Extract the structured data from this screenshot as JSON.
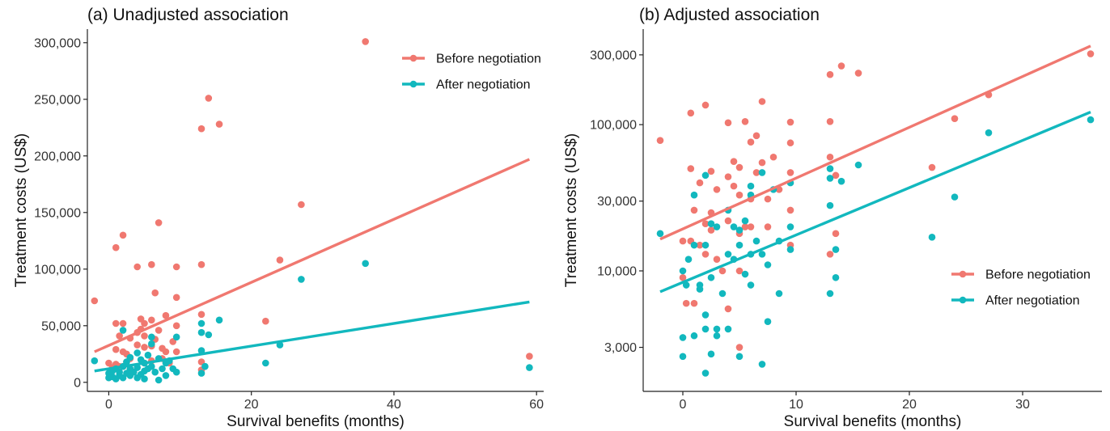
{
  "chart_data": [
    {
      "type": "scatter",
      "title": "(a) Unadjusted association",
      "xlabel": "Survival benefits (months)",
      "ylabel": "Treatment costs (US$)",
      "xlim": [
        -3,
        61
      ],
      "ylim": [
        -8000,
        312000
      ],
      "y_scale": "linear",
      "xticks": [
        0,
        20,
        40,
        60
      ],
      "yticks": [
        0,
        50000,
        100000,
        150000,
        200000,
        250000,
        300000
      ],
      "ytick_labels": [
        "0",
        "50,000",
        "100,000",
        "150,000",
        "200,000",
        "250,000",
        "300,000"
      ],
      "legend_position": "top-right",
      "grid": false,
      "series": [
        {
          "name": "Before negotiation",
          "color": "#F07870",
          "points": [
            [
              -2,
              72000
            ],
            [
              0,
              17000
            ],
            [
              0.5,
              13000
            ],
            [
              1,
              119000
            ],
            [
              1,
              52000
            ],
            [
              1,
              29000
            ],
            [
              1,
              16000
            ],
            [
              1.5,
              14000
            ],
            [
              1.5,
              41000
            ],
            [
              2,
              130000
            ],
            [
              2,
              52000
            ],
            [
              2,
              27000
            ],
            [
              2,
              14000
            ],
            [
              2.5,
              25000
            ],
            [
              2.5,
              18000
            ],
            [
              3,
              39000
            ],
            [
              3,
              21000
            ],
            [
              3,
              12000
            ],
            [
              4,
              102000
            ],
            [
              4,
              44000
            ],
            [
              4,
              33000
            ],
            [
              4.5,
              56000
            ],
            [
              4.5,
              47000
            ],
            [
              5,
              52000
            ],
            [
              5,
              41000
            ],
            [
              5,
              31000
            ],
            [
              5,
              17000
            ],
            [
              6,
              104000
            ],
            [
              6,
              55000
            ],
            [
              6,
              32000
            ],
            [
              6,
              19000
            ],
            [
              6.5,
              79000
            ],
            [
              6.5,
              38000
            ],
            [
              7,
              141000
            ],
            [
              7,
              46000
            ],
            [
              7.5,
              30000
            ],
            [
              7.5,
              21000
            ],
            [
              8,
              59000
            ],
            [
              8,
              27000
            ],
            [
              8.5,
              17000
            ],
            [
              9,
              36000
            ],
            [
              9.5,
              102000
            ],
            [
              9.5,
              75000
            ],
            [
              9.5,
              50000
            ],
            [
              9.5,
              27000
            ],
            [
              13,
              224000
            ],
            [
              13,
              104000
            ],
            [
              13,
              60000
            ],
            [
              13,
              18000
            ],
            [
              13,
              11000
            ],
            [
              14,
              251000
            ],
            [
              15.5,
              228000
            ],
            [
              22,
              54000
            ],
            [
              24,
              108000
            ],
            [
              27,
              157000
            ],
            [
              36,
              301000
            ],
            [
              59,
              23000
            ]
          ],
          "trend": {
            "x": [
              -2,
              59
            ],
            "y": [
              27000,
              197000
            ]
          }
        },
        {
          "name": "After negotiation",
          "color": "#12B8BE",
          "points": [
            [
              -2,
              19000
            ],
            [
              0,
              4000
            ],
            [
              0,
              8000
            ],
            [
              0.5,
              5000
            ],
            [
              0.5,
              10000
            ],
            [
              1,
              3000
            ],
            [
              1,
              12000
            ],
            [
              1.5,
              6000
            ],
            [
              1.5,
              9000
            ],
            [
              2,
              4000
            ],
            [
              2,
              14000
            ],
            [
              2,
              46000
            ],
            [
              2.5,
              8000
            ],
            [
              2.5,
              18000
            ],
            [
              3,
              6000
            ],
            [
              3,
              12000
            ],
            [
              3,
              22000
            ],
            [
              3.5,
              9000
            ],
            [
              4,
              13000
            ],
            [
              4,
              26000
            ],
            [
              4,
              4000
            ],
            [
              4.5,
              7000
            ],
            [
              4.5,
              20000
            ],
            [
              5,
              3000
            ],
            [
              5,
              10000
            ],
            [
              5,
              17000
            ],
            [
              5.5,
              24000
            ],
            [
              5.5,
              12000
            ],
            [
              6,
              14000
            ],
            [
              6,
              34000
            ],
            [
              6,
              40000
            ],
            [
              6.5,
              9000
            ],
            [
              7,
              2000
            ],
            [
              7,
              21000
            ],
            [
              7.5,
              12000
            ],
            [
              8,
              17000
            ],
            [
              8,
              6000
            ],
            [
              8.5,
              19000
            ],
            [
              9,
              12000
            ],
            [
              9.5,
              40000
            ],
            [
              9.5,
              9000
            ],
            [
              13,
              52000
            ],
            [
              13,
              44000
            ],
            [
              13,
              28000
            ],
            [
              13,
              8000
            ],
            [
              13.5,
              14000
            ],
            [
              14,
              42000
            ],
            [
              15.5,
              55000
            ],
            [
              22,
              17000
            ],
            [
              24,
              33000
            ],
            [
              27,
              91000
            ],
            [
              36,
              105000
            ],
            [
              59,
              13000
            ]
          ],
          "trend": {
            "x": [
              -2,
              59
            ],
            "y": [
              10000,
              71000
            ]
          }
        }
      ]
    },
    {
      "type": "scatter",
      "title": "(b) Adjusted association",
      "xlabel": "Survival benefits (months)",
      "ylabel": "Treatment costs (US$)",
      "xlim": [
        -3.5,
        37
      ],
      "ylim": [
        1500,
        450000
      ],
      "y_scale": "log",
      "xticks": [
        0,
        10,
        20,
        30
      ],
      "yticks": [
        3000,
        10000,
        30000,
        100000,
        300000
      ],
      "ytick_labels": [
        "3,000",
        "10,000",
        "30,000",
        "100,000",
        "300,000"
      ],
      "legend_position": "bottom-right",
      "grid": false,
      "series": [
        {
          "name": "Before negotiation",
          "color": "#F07870",
          "points": [
            [
              -2,
              78000
            ],
            [
              0,
              16000
            ],
            [
              0,
              9000
            ],
            [
              0.3,
              6000
            ],
            [
              0.7,
              120000
            ],
            [
              0.7,
              50000
            ],
            [
              0.7,
              16000
            ],
            [
              1,
              26000
            ],
            [
              1,
              6000
            ],
            [
              1.5,
              15000
            ],
            [
              1.5,
              40000
            ],
            [
              2,
              136000
            ],
            [
              2,
              13000
            ],
            [
              2,
              21000
            ],
            [
              2.5,
              48000
            ],
            [
              2.5,
              25000
            ],
            [
              2.5,
              19000
            ],
            [
              3,
              36000
            ],
            [
              3,
              12000
            ],
            [
              3.5,
              10000
            ],
            [
              4,
              103000
            ],
            [
              4,
              44000
            ],
            [
              4,
              22000
            ],
            [
              4,
              5500
            ],
            [
              4.5,
              56000
            ],
            [
              4.5,
              38000
            ],
            [
              5,
              51000
            ],
            [
              5,
              33000
            ],
            [
              5,
              18000
            ],
            [
              5,
              10000
            ],
            [
              5,
              3000
            ],
            [
              5.5,
              20000
            ],
            [
              5.5,
              105000
            ],
            [
              6,
              76000
            ],
            [
              6,
              31000
            ],
            [
              6,
              20000
            ],
            [
              6.5,
              84000
            ],
            [
              6.5,
              47000
            ],
            [
              7,
              144000
            ],
            [
              7,
              55000
            ],
            [
              7.5,
              31000
            ],
            [
              7.5,
              20000
            ],
            [
              8,
              60000
            ],
            [
              8.5,
              36000
            ],
            [
              9.5,
              104000
            ],
            [
              9.5,
              75000
            ],
            [
              9.5,
              47000
            ],
            [
              9.5,
              26000
            ],
            [
              9.5,
              15000
            ],
            [
              13,
              220000
            ],
            [
              13,
              105000
            ],
            [
              13,
              60000
            ],
            [
              13,
              13000
            ],
            [
              13.5,
              18000
            ],
            [
              13.5,
              45000
            ],
            [
              14,
              252000
            ],
            [
              15.5,
              225000
            ],
            [
              22,
              51000
            ],
            [
              24,
              110000
            ],
            [
              27,
              160000
            ],
            [
              36,
              305000
            ]
          ],
          "trend": {
            "x": [
              -2,
              36
            ],
            "y": [
              16500,
              345000
            ]
          }
        },
        {
          "name": "After negotiation",
          "color": "#12B8BE",
          "points": [
            [
              -2,
              18000
            ],
            [
              0,
              10000
            ],
            [
              0,
              3500
            ],
            [
              0,
              2600
            ],
            [
              0.3,
              8000
            ],
            [
              0.5,
              12000
            ],
            [
              1,
              33000
            ],
            [
              1,
              15000
            ],
            [
              1,
              3600
            ],
            [
              1.5,
              8000
            ],
            [
              1.5,
              7500
            ],
            [
              2,
              45000
            ],
            [
              2,
              15000
            ],
            [
              2,
              5000
            ],
            [
              2,
              4000
            ],
            [
              2,
              2000
            ],
            [
              2.5,
              21000
            ],
            [
              2.5,
              2700
            ],
            [
              2.5,
              9000
            ],
            [
              3,
              20000
            ],
            [
              3,
              4000
            ],
            [
              3,
              3600
            ],
            [
              3.5,
              7000
            ],
            [
              4,
              13000
            ],
            [
              4,
              4000
            ],
            [
              4,
              26000
            ],
            [
              4.5,
              20000
            ],
            [
              4.5,
              12000
            ],
            [
              5,
              19000
            ],
            [
              5,
              2600
            ],
            [
              5,
              15000
            ],
            [
              5.5,
              22000
            ],
            [
              5.5,
              9500
            ],
            [
              6,
              38000
            ],
            [
              6,
              33000
            ],
            [
              6,
              13000
            ],
            [
              6,
              8000
            ],
            [
              6.5,
              16000
            ],
            [
              7,
              47000
            ],
            [
              7,
              13000
            ],
            [
              7,
              2300
            ],
            [
              7.5,
              11000
            ],
            [
              7.5,
              4500
            ],
            [
              8,
              36000
            ],
            [
              8.5,
              16000
            ],
            [
              8.5,
              7000
            ],
            [
              9.5,
              40000
            ],
            [
              9.5,
              20000
            ],
            [
              9.5,
              14000
            ],
            [
              13,
              50000
            ],
            [
              13,
              43000
            ],
            [
              13,
              28000
            ],
            [
              13,
              7000
            ],
            [
              13.5,
              9000
            ],
            [
              13.5,
              14000
            ],
            [
              14,
              41000
            ],
            [
              15.5,
              53000
            ],
            [
              22,
              17000
            ],
            [
              24,
              32000
            ],
            [
              27,
              88000
            ],
            [
              36,
              108000
            ]
          ],
          "trend": {
            "x": [
              -2,
              36
            ],
            "y": [
              7200,
              122000
            ]
          }
        }
      ]
    }
  ]
}
